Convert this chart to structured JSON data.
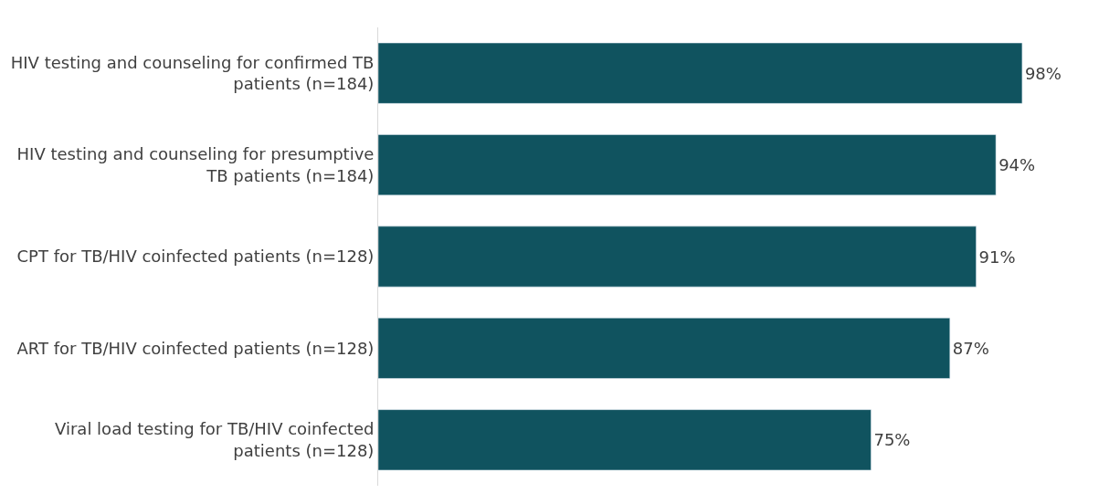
{
  "chart_data": {
    "type": "bar",
    "orientation": "horizontal",
    "categories": [
      "HIV testing and counseling for confirmed TB patients (n=184)",
      "HIV testing and counseling for presumptive TB patients (n=184)",
      "CPT for TB/HIV coinfected patients (n=128)",
      "ART for TB/HIV coinfected patients (n=128)",
      "Viral load testing for TB/HIV coinfected patients (n=128)"
    ],
    "values": [
      98,
      94,
      91,
      87,
      75
    ],
    "value_labels": [
      "98%",
      "94%",
      "91%",
      "87%",
      "75%"
    ],
    "color": "#10535f",
    "tick_labels": "y",
    "legend": false
  }
}
